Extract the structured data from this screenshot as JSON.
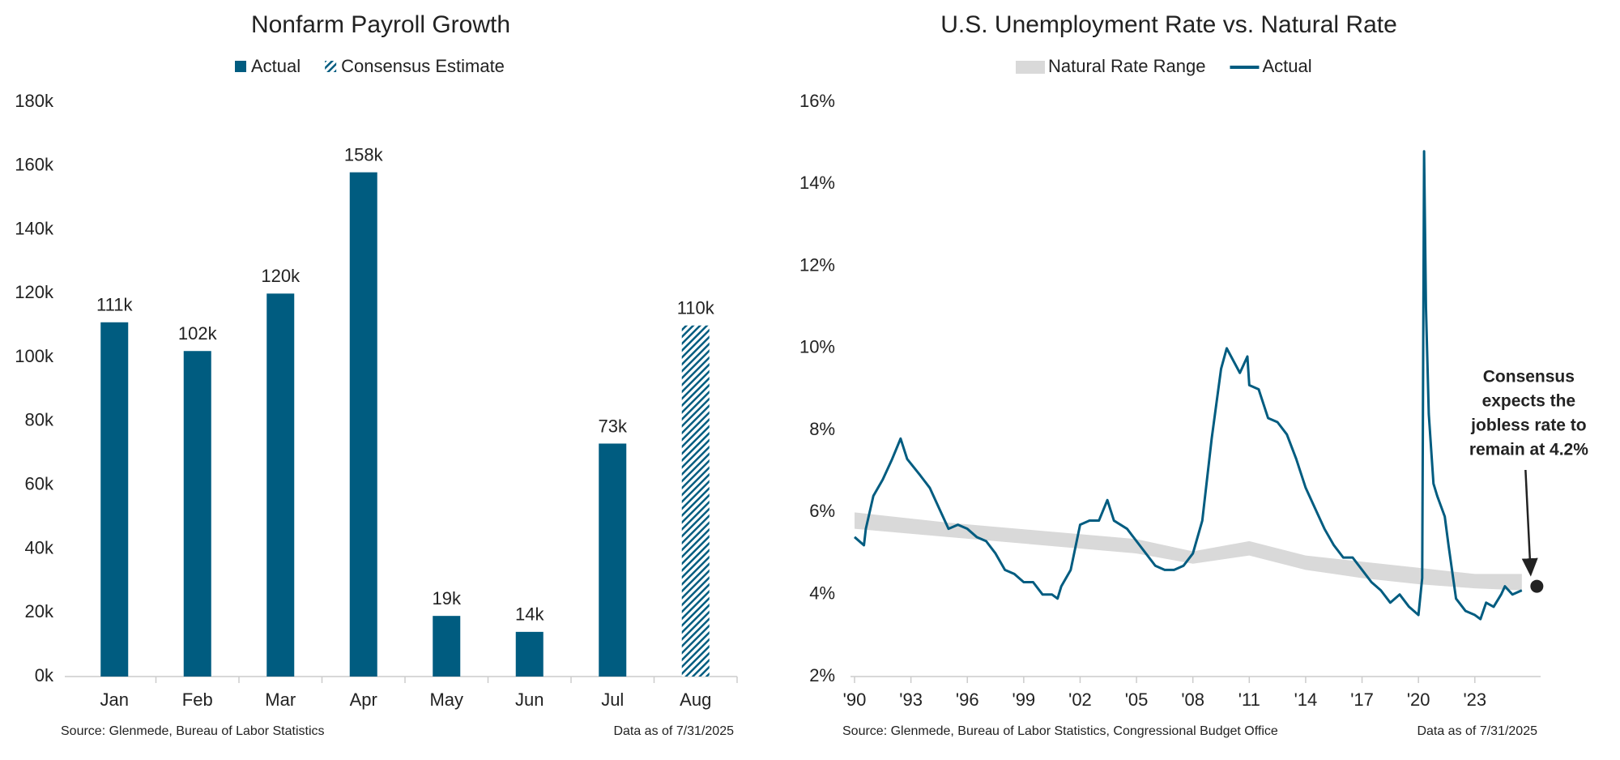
{
  "chart_data": [
    {
      "type": "bar",
      "title": "Nonfarm Payroll Growth",
      "categories": [
        "Jan",
        "Feb",
        "Mar",
        "Apr",
        "May",
        "Jun",
        "Jul",
        "Aug"
      ],
      "series": [
        {
          "name": "Actual",
          "color": "#005c80",
          "pattern": "solid",
          "values": [
            111000,
            102000,
            120000,
            158000,
            19000,
            14000,
            73000,
            null
          ],
          "value_labels": [
            "111k",
            "102k",
            "120k",
            "158k",
            "19k",
            "14k",
            "73k",
            null
          ]
        },
        {
          "name": "Consensus Estimate",
          "color": "#005c80",
          "pattern": "hatch",
          "values": [
            null,
            null,
            null,
            null,
            null,
            null,
            null,
            110000
          ],
          "value_labels": [
            null,
            null,
            null,
            null,
            null,
            null,
            null,
            "110k"
          ]
        }
      ],
      "ylim": [
        0,
        180000
      ],
      "yticks": [
        {
          "value": 0,
          "label": "0k"
        },
        {
          "value": 20000,
          "label": "20k"
        },
        {
          "value": 40000,
          "label": "40k"
        },
        {
          "value": 60000,
          "label": "60k"
        },
        {
          "value": 80000,
          "label": "80k"
        },
        {
          "value": 100000,
          "label": "100k"
        },
        {
          "value": 120000,
          "label": "120k"
        },
        {
          "value": 140000,
          "label": "140k"
        },
        {
          "value": 160000,
          "label": "160k"
        },
        {
          "value": 180000,
          "label": "180k"
        }
      ],
      "source": "Source: Glenmede, Bureau of Labor Statistics",
      "note": "Data as of 7/31/2025"
    },
    {
      "type": "line",
      "title": "U.S. Unemployment Rate vs. Natural Rate",
      "series": [
        {
          "name": "Natural Rate Range",
          "color": "#d9d9d9",
          "kind": "band",
          "x": [
            1990,
            1995,
            2000,
            2005,
            2008,
            2011,
            2014,
            2017,
            2020,
            2023,
            2025.5
          ],
          "upper": [
            6.0,
            5.75,
            5.55,
            5.35,
            5.05,
            5.3,
            4.95,
            4.8,
            4.65,
            4.5,
            4.5
          ],
          "lower": [
            5.6,
            5.4,
            5.2,
            5.0,
            4.75,
            4.95,
            4.6,
            4.4,
            4.25,
            4.15,
            4.1
          ]
        },
        {
          "name": "Actual",
          "color": "#005c80",
          "kind": "line",
          "x": [
            1990.0,
            1990.5,
            1990.6,
            1991.0,
            1991.5,
            1992.0,
            1992.45,
            1992.8,
            1993.5,
            1994.0,
            1994.5,
            1995.0,
            1995.5,
            1996.0,
            1996.5,
            1997.0,
            1997.5,
            1998.0,
            1998.5,
            1999.0,
            1999.5,
            2000.0,
            2000.5,
            2000.8,
            2001.0,
            2001.5,
            2002.0,
            2002.5,
            2003.0,
            2003.45,
            2003.8,
            2004.5,
            2005.0,
            2005.5,
            2006.0,
            2006.5,
            2007.0,
            2007.5,
            2008.0,
            2008.5,
            2009.0,
            2009.5,
            2009.8,
            2010.5,
            2010.9,
            2011.0,
            2011.5,
            2012.0,
            2012.5,
            2013.0,
            2013.5,
            2014.0,
            2014.5,
            2015.0,
            2015.5,
            2016.0,
            2016.5,
            2017.0,
            2017.5,
            2018.0,
            2018.5,
            2019.0,
            2019.5,
            2020.0,
            2020.2,
            2020.3,
            2020.4,
            2020.55,
            2020.8,
            2021.0,
            2021.4,
            2021.6,
            2022.0,
            2022.5,
            2023.0,
            2023.3,
            2023.6,
            2024.0,
            2024.4,
            2024.6,
            2025.0,
            2025.5
          ],
          "values": [
            5.4,
            5.2,
            5.6,
            6.4,
            6.8,
            7.3,
            7.8,
            7.3,
            6.9,
            6.6,
            6.1,
            5.6,
            5.7,
            5.6,
            5.4,
            5.3,
            5.0,
            4.6,
            4.5,
            4.3,
            4.3,
            4.0,
            4.0,
            3.9,
            4.2,
            4.6,
            5.7,
            5.8,
            5.8,
            6.3,
            5.8,
            5.6,
            5.3,
            5.0,
            4.7,
            4.6,
            4.6,
            4.7,
            5.0,
            5.8,
            7.8,
            9.5,
            10.0,
            9.4,
            9.8,
            9.1,
            9.0,
            8.3,
            8.2,
            7.9,
            7.3,
            6.6,
            6.1,
            5.6,
            5.2,
            4.9,
            4.9,
            4.6,
            4.3,
            4.1,
            3.8,
            4.0,
            3.7,
            3.5,
            4.4,
            14.8,
            11.0,
            8.4,
            6.7,
            6.4,
            5.9,
            5.2,
            3.9,
            3.6,
            3.5,
            3.4,
            3.8,
            3.7,
            4.0,
            4.2,
            4.0,
            4.1
          ]
        }
      ],
      "xlim": [
        1990,
        2026.5
      ],
      "xticks": [
        {
          "value": 1990,
          "label": "'90"
        },
        {
          "value": 1993,
          "label": "'93"
        },
        {
          "value": 1996,
          "label": "'96"
        },
        {
          "value": 1999,
          "label": "'99"
        },
        {
          "value": 2002,
          "label": "'02"
        },
        {
          "value": 2005,
          "label": "'05"
        },
        {
          "value": 2008,
          "label": "'08"
        },
        {
          "value": 2011,
          "label": "'11"
        },
        {
          "value": 2014,
          "label": "'14"
        },
        {
          "value": 2017,
          "label": "'17"
        },
        {
          "value": 2020,
          "label": "'20"
        },
        {
          "value": 2023,
          "label": "'23"
        }
      ],
      "ylim": [
        2,
        16
      ],
      "yticks": [
        {
          "value": 2,
          "label": "2%"
        },
        {
          "value": 4,
          "label": "4%"
        },
        {
          "value": 6,
          "label": "6%"
        },
        {
          "value": 8,
          "label": "8%"
        },
        {
          "value": 10,
          "label": "10%"
        },
        {
          "value": 12,
          "label": "12%"
        },
        {
          "value": 14,
          "label": "14%"
        },
        {
          "value": 16,
          "label": "16%"
        }
      ],
      "annotation": {
        "lines": [
          "Consensus",
          "expects the",
          "jobless rate to",
          "remain at 4.2%"
        ],
        "x": 2026.3,
        "y": 4.2
      },
      "source": "Source: Glenmede, Bureau of Labor Statistics, Congressional Budget Office",
      "note": "Data as of 7/31/2025"
    }
  ]
}
